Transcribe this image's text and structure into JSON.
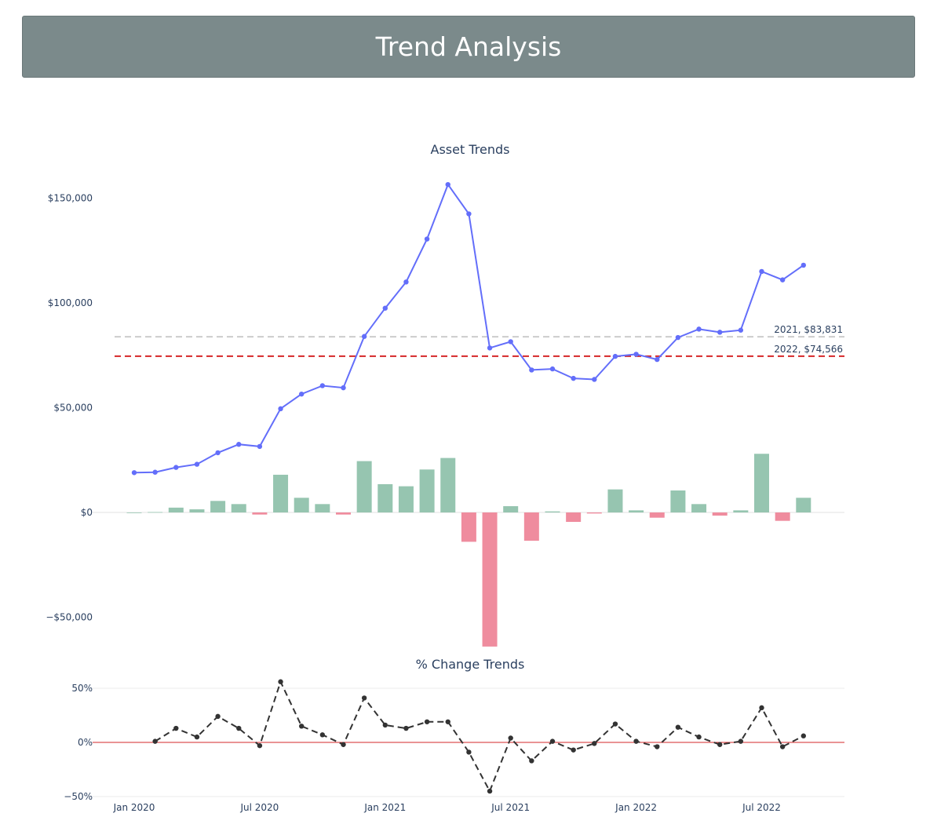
{
  "header": {
    "title": "Trend Analysis"
  },
  "chart_data": [
    {
      "type": "line+bar",
      "title": "Asset Trends",
      "x": [
        "2020-01",
        "2020-02",
        "2020-03",
        "2020-04",
        "2020-05",
        "2020-06",
        "2020-07",
        "2020-08",
        "2020-09",
        "2020-10",
        "2020-11",
        "2020-12",
        "2021-01",
        "2021-02",
        "2021-03",
        "2021-04",
        "2021-05",
        "2021-06",
        "2021-07",
        "2021-08",
        "2021-09",
        "2021-10",
        "2021-11",
        "2021-12",
        "2022-01",
        "2022-02",
        "2022-03",
        "2022-04",
        "2022-05",
        "2022-06",
        "2022-07",
        "2022-08",
        "2022-09"
      ],
      "series": [
        {
          "type": "line",
          "color": "#636efa",
          "values": [
            19000,
            19200,
            21500,
            23000,
            28500,
            32500,
            31500,
            49500,
            56500,
            60500,
            59500,
            84000,
            97500,
            110000,
            130500,
            156500,
            142500,
            78500,
            81500,
            68000,
            68500,
            64000,
            63500,
            74500,
            75500,
            73000,
            83500,
            87500,
            86000,
            87000,
            115000,
            111000,
            118000
          ]
        },
        {
          "type": "bar",
          "positive_color": "#96c5b0",
          "negative_color": "#ef8c9e",
          "values": [
            0,
            200,
            2300,
            1500,
            5500,
            4000,
            -1000,
            18000,
            7000,
            4000,
            -1000,
            24500,
            13500,
            12500,
            20500,
            26000,
            -14000,
            -64000,
            3000,
            -13500,
            500,
            -4500,
            -500,
            11000,
            1000,
            -2500,
            10500,
            4000,
            -1500,
            1000,
            28000,
            -4000,
            7000
          ]
        }
      ],
      "reference_lines": [
        {
          "label": "2021, $83,831",
          "value": 83831,
          "color": "#cccccc"
        },
        {
          "label": "2022, $74,566",
          "value": 74566,
          "color": "#d62728"
        }
      ],
      "yticks": [
        {
          "value": 150000,
          "label": "$150,000"
        },
        {
          "value": 100000,
          "label": "$100,000"
        },
        {
          "value": 50000,
          "label": "$50,000"
        },
        {
          "value": 0,
          "label": "$0"
        },
        {
          "value": -50000,
          "label": "−$50,000"
        }
      ],
      "ylim": [
        -65000,
        160000
      ]
    },
    {
      "type": "line",
      "title": "% Change Trends",
      "x": [
        "2020-01",
        "2020-02",
        "2020-03",
        "2020-04",
        "2020-05",
        "2020-06",
        "2020-07",
        "2020-08",
        "2020-09",
        "2020-10",
        "2020-11",
        "2020-12",
        "2021-01",
        "2021-02",
        "2021-03",
        "2021-04",
        "2021-05",
        "2021-06",
        "2021-07",
        "2021-08",
        "2021-09",
        "2021-10",
        "2021-11",
        "2021-12",
        "2022-01",
        "2022-02",
        "2022-03",
        "2022-04",
        "2022-05",
        "2022-06",
        "2022-07",
        "2022-08",
        "2022-09"
      ],
      "series": [
        {
          "color": "#333333",
          "dash": "dashed",
          "values": [
            null,
            1,
            13,
            5,
            24,
            13,
            -3,
            56,
            15,
            7,
            -2,
            41,
            16,
            13,
            19,
            19,
            -9,
            -45,
            4,
            -17,
            1,
            -7,
            -1,
            17,
            1,
            -4,
            14,
            5,
            -2,
            1,
            32,
            -4,
            6
          ]
        }
      ],
      "zero_line_color": "#d62728",
      "yticks": [
        {
          "value": 50,
          "label": "50%"
        },
        {
          "value": 0,
          "label": "0%"
        },
        {
          "value": -50,
          "label": "−50%"
        }
      ],
      "ylim": [
        -50,
        55
      ]
    }
  ],
  "xticks": [
    {
      "x": "2020-01",
      "label": "Jan 2020"
    },
    {
      "x": "2020-07",
      "label": "Jul 2020"
    },
    {
      "x": "2021-01",
      "label": "Jan 2021"
    },
    {
      "x": "2021-07",
      "label": "Jul 2021"
    },
    {
      "x": "2022-01",
      "label": "Jan 2022"
    },
    {
      "x": "2022-07",
      "label": "Jul 2022"
    }
  ]
}
